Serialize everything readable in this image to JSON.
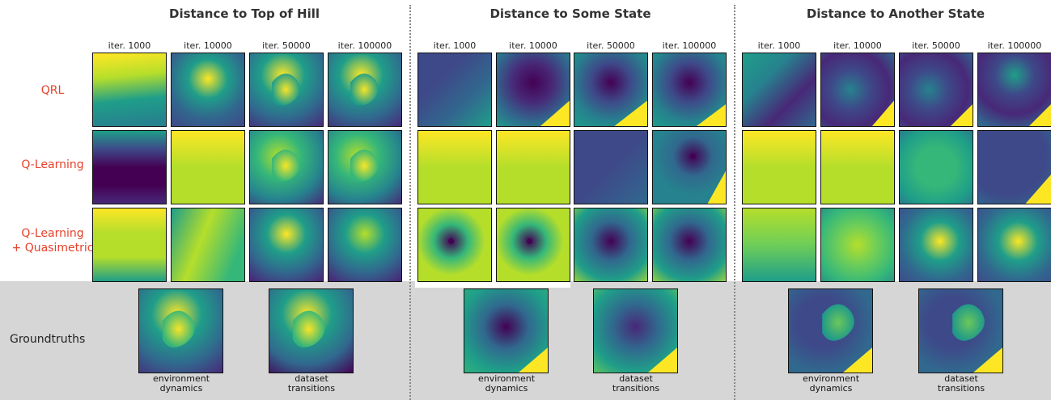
{
  "colors": {
    "row_label": "#e8402a",
    "groundtruth_band": "#d6d6d6",
    "viridis_low": "#440154",
    "viridis_mid": "#21918c",
    "viridis_high": "#fde725"
  },
  "sections": [
    {
      "title": "Distance to Top of Hill"
    },
    {
      "title": "Distance to Some State"
    },
    {
      "title": "Distance to Another State"
    }
  ],
  "iterations": [
    "iter. 1000",
    "iter. 10000",
    "iter. 50000",
    "iter. 100000"
  ],
  "rows": [
    {
      "label_line1": "QRL",
      "label_line2": ""
    },
    {
      "label_line1": "Q-Learning",
      "label_line2": ""
    },
    {
      "label_line1": "Q-Learning",
      "label_line2": "+ Quasimetric"
    }
  ],
  "groundtruth": {
    "label": "Groundtruths",
    "captions": [
      {
        "line1": "environment",
        "line2": "dynamics"
      },
      {
        "line1": "dataset",
        "line2": "transitions"
      }
    ]
  }
}
